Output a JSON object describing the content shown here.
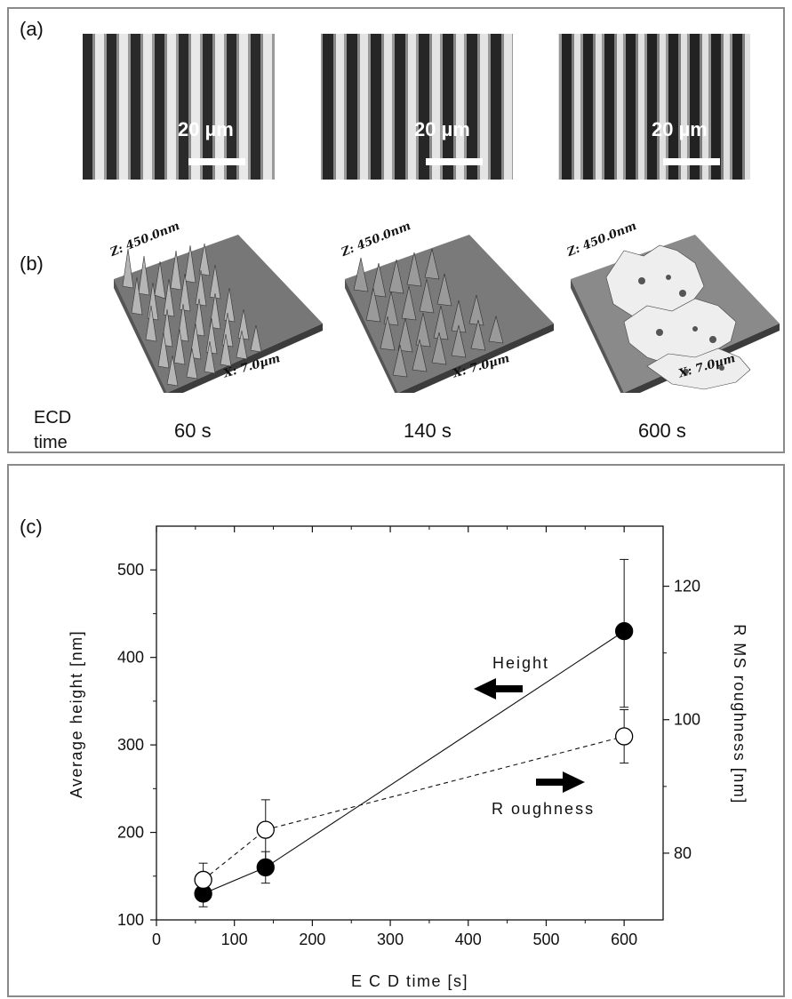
{
  "panels": {
    "a_label": "(a)",
    "b_label": "(b)",
    "c_label": "(c)"
  },
  "micrographs": [
    {
      "scale_label": "20 µm"
    },
    {
      "scale_label": "20 µm"
    },
    {
      "scale_label": "20 µm"
    }
  ],
  "afm": [
    {
      "z_label": "Z: 450.0nm",
      "x_label": "X: 7.0µm",
      "time": "60 s"
    },
    {
      "z_label": "Z: 450.0nm",
      "x_label": "X: 7.0µm",
      "time": "140 s"
    },
    {
      "z_label": "Z: 450.0nm",
      "x_label": "X: 7.0µm",
      "time": "600 s"
    }
  ],
  "ecd_label": {
    "line1": "ECD",
    "line2": "time"
  },
  "chart_data": {
    "type": "scatter",
    "xlabel": "E C D  time [s]",
    "ylabel_left": "Average height [nm]",
    "ylabel_right": "R MS roughness [nm]",
    "xlim": [
      0,
      650
    ],
    "ylim_left": [
      100,
      550
    ],
    "ylim_right": [
      70,
      129
    ],
    "x_ticks": [
      0,
      100,
      200,
      300,
      400,
      500,
      600
    ],
    "y_ticks_left": [
      100,
      200,
      300,
      400,
      500
    ],
    "y_ticks_right": [
      80,
      100,
      120
    ],
    "grid": false,
    "series": [
      {
        "name": "Height",
        "axis": "left",
        "marker": "filled-circle",
        "line": "solid",
        "x": [
          60,
          140,
          600
        ],
        "y": [
          130,
          160,
          430
        ],
        "err_low": [
          115,
          142,
          343
        ],
        "err_high": [
          145,
          178,
          512
        ]
      },
      {
        "name": "Roughness",
        "axis": "right",
        "marker": "open-circle",
        "line": "dashed",
        "x": [
          60,
          140,
          600
        ],
        "y": [
          76,
          83.5,
          97.5
        ],
        "err_low": [
          74,
          79,
          93.5
        ],
        "err_high": [
          78.5,
          88,
          101.5
        ]
      }
    ],
    "annotations": [
      {
        "text": "Height",
        "arrow": "left"
      },
      {
        "text": "R oughness",
        "arrow": "right"
      }
    ]
  }
}
